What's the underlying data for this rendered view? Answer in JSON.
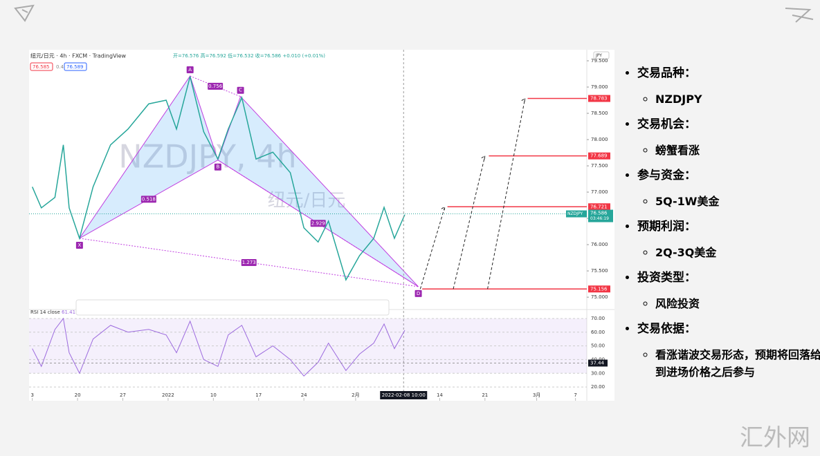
{
  "chart_data": {
    "type": "line",
    "symbol_line": "纽元/日元 · 4h · FXCM · TradingView",
    "ohlc": "开=76.576 高=76.592 低=76.532 收=76.586 +0.010 (+0.01%)",
    "quote_boxes": [
      "76.585",
      "0.4",
      "76.589"
    ],
    "currency": "JPY",
    "watermark_title": "NZDJPY, 4h",
    "watermark_subtitle": "纽元/日元",
    "color": "#26a69a",
    "x": [
      0,
      1.4,
      3.5,
      4.8,
      5.7,
      7.3,
      9.4,
      12.1,
      14.8,
      18.0,
      20.7,
      22.3,
      24.4,
      26.5,
      28.7,
      30.3,
      32.4,
      34.6,
      37.2,
      39.9,
      42.0,
      44.2,
      45.8,
      48.5,
      50.6,
      52.8,
      54.4,
      56.0,
      57.6
    ],
    "values": [
      77.1,
      76.7,
      76.9,
      77.9,
      76.7,
      76.12,
      77.1,
      77.9,
      78.2,
      78.68,
      78.75,
      78.2,
      79.2,
      78.15,
      77.63,
      78.2,
      78.8,
      77.63,
      77.76,
      77.37,
      76.32,
      76.05,
      76.45,
      75.33,
      75.79,
      76.12,
      76.71,
      76.12,
      76.57
    ],
    "xlim": [
      -0.5,
      85.75
    ],
    "ylim": [
      74.87,
      79.5
    ],
    "xticks": [
      {
        "value": 0,
        "label": "3"
      },
      {
        "value": 7,
        "label": "20"
      },
      {
        "value": 14,
        "label": "27"
      },
      {
        "value": 21,
        "label": "2022"
      },
      {
        "value": 28,
        "label": "10"
      },
      {
        "value": 35,
        "label": "17"
      },
      {
        "value": 42,
        "label": "24"
      },
      {
        "value": 50,
        "label": "2月"
      },
      {
        "value": 63,
        "label": "14"
      },
      {
        "value": 70,
        "label": "21"
      },
      {
        "value": 78,
        "label": "3月"
      },
      {
        "value": 84,
        "label": "7"
      }
    ],
    "yticks": [
      {
        "value": 75,
        "label": "75.000"
      },
      {
        "value": 75.5,
        "label": "75.500"
      },
      {
        "value": 76,
        "label": "76.000"
      },
      {
        "value": 76.5,
        "label": "76.500"
      },
      {
        "value": 77,
        "label": "77.000"
      },
      {
        "value": 77.5,
        "label": "77.500"
      },
      {
        "value": 78,
        "label": "78.000"
      },
      {
        "value": 78.5,
        "label": "78.500"
      },
      {
        "value": 79,
        "label": "79.000"
      },
      {
        "value": 79.5,
        "label": "79.500"
      }
    ],
    "pattern": {
      "color": "#c03ce0",
      "points": [
        {
          "name": "X",
          "x": 7.3,
          "value": 76.12
        },
        {
          "name": "A",
          "x": 24.4,
          "value": 79.21
        },
        {
          "name": "B",
          "x": 28.7,
          "value": 77.61
        },
        {
          "name": "C",
          "x": 32.2,
          "value": 78.82
        },
        {
          "name": "D",
          "x": 59.7,
          "value": 75.2
        }
      ],
      "ratios": [
        "0.756",
        "0.518",
        "1.273",
        "2.929"
      ]
    },
    "levels": {
      "color": "#f23645",
      "values": [
        78.783,
        77.689,
        76.721,
        75.156
      ]
    },
    "last_price": {
      "symbol": "NZDJPY",
      "value": 76.586,
      "countdown": "03:46:19"
    },
    "crosshair": {
      "x": 57.42,
      "label": "2022-02-08  10:00",
      "rsi_value": 37.44
    },
    "rsi": {
      "title": "RSI 14 close",
      "last": 61.41,
      "color": "#9c6ade",
      "band": [
        30,
        70
      ],
      "ylim": [
        15,
        73
      ],
      "yticks": [
        {
          "value": 20,
          "label": "20.00"
        },
        {
          "value": 30,
          "label": "30.00"
        },
        {
          "value": 40,
          "label": "40.00"
        },
        {
          "value": 50,
          "label": "50.00"
        },
        {
          "value": 60,
          "label": "60.00"
        },
        {
          "value": 70,
          "label": "70.00"
        }
      ],
      "x": [
        0,
        1.4,
        3.5,
        4.8,
        5.7,
        7.3,
        9.4,
        12.1,
        14.8,
        18.0,
        20.7,
        22.3,
        24.4,
        26.5,
        28.7,
        30.3,
        32.4,
        34.6,
        37.2,
        39.9,
        42.0,
        44.2,
        45.8,
        48.5,
        50.6,
        52.8,
        54.4,
        56.0,
        57.6
      ],
      "values": [
        48,
        35,
        62,
        70,
        45,
        30,
        55,
        65,
        60,
        62,
        58,
        45,
        68,
        40,
        35,
        58,
        65,
        42,
        50,
        40,
        28,
        38,
        52,
        32,
        44,
        52,
        66,
        48,
        61.41
      ]
    }
  },
  "bullets": [
    {
      "text": "交易品种：",
      "sub": [
        "NZDJPY"
      ]
    },
    {
      "text": "交易机会：",
      "sub": [
        "螃蟹看涨"
      ]
    },
    {
      "text": "参与资金：",
      "sub": [
        "5Q-1W美金"
      ]
    },
    {
      "text": "预期利润：",
      "sub": [
        "2Q-3Q美金"
      ]
    },
    {
      "text": "投资类型：",
      "sub": [
        "风险投资"
      ]
    },
    {
      "text": "交易依据：",
      "sub": [
        "看涨谐波交易形态，预期将回落给到进场价格之后参与"
      ]
    }
  ],
  "brand": "汇外网"
}
